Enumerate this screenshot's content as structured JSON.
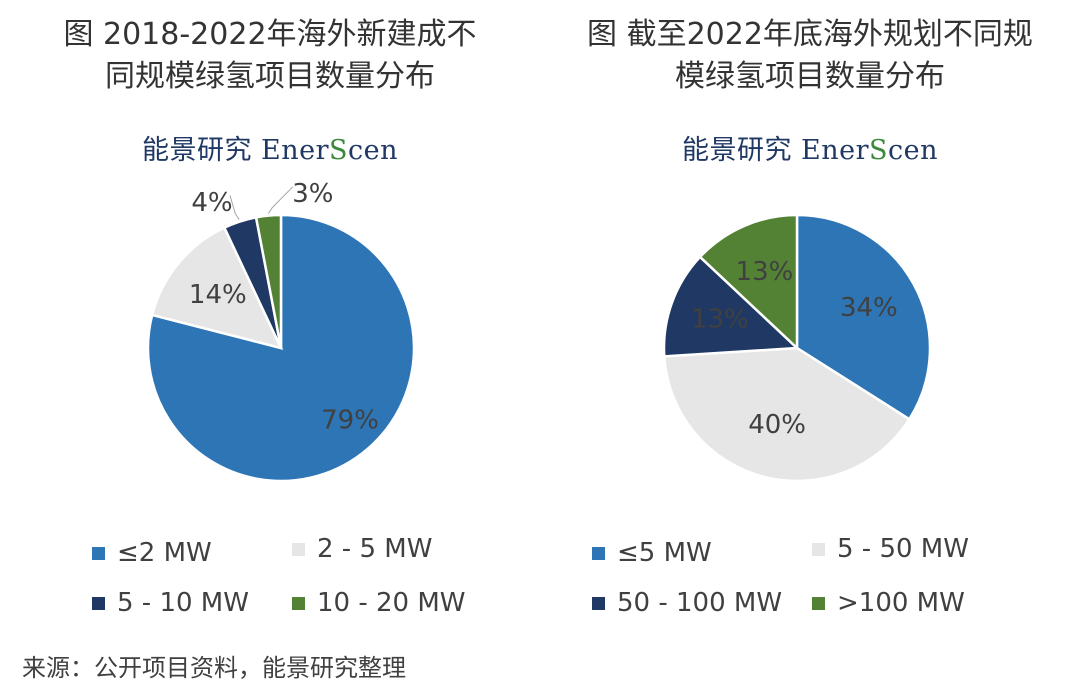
{
  "colors": {
    "blue": "#2e75b6",
    "lightgray": "#e6e6e6",
    "navy": "#203864",
    "green": "#548235",
    "label": "#404040",
    "border": "#ffffff"
  },
  "brand": {
    "prefix": "能景研究 Ener",
    "accent": "S",
    "suffix": "cen"
  },
  "source": "来源：公开项目资料，能景研究整理",
  "chart_data": [
    {
      "type": "pie",
      "title_lines": [
        "图 2018-2022年海外新建成不",
        "同规模绿氢项目数量分布"
      ],
      "categories": [
        "≤2 MW",
        "2 - 5 MW",
        "5 - 10 MW",
        "10 - 20 MW"
      ],
      "values": [
        79,
        14,
        4,
        3
      ],
      "data_labels": [
        "79%",
        "14%",
        "4%",
        "3%"
      ],
      "legend_position": "bottom"
    },
    {
      "type": "pie",
      "title_lines": [
        "图 截至2022年底海外规划不同规",
        "模绿氢项目数量分布"
      ],
      "categories": [
        "≤5 MW",
        "5 - 50 MW",
        "50 - 100 MW",
        ">100 MW"
      ],
      "values": [
        34,
        40,
        13,
        13
      ],
      "data_labels": [
        "34%",
        "40%",
        "13%",
        "13%"
      ],
      "legend_position": "bottom"
    }
  ]
}
